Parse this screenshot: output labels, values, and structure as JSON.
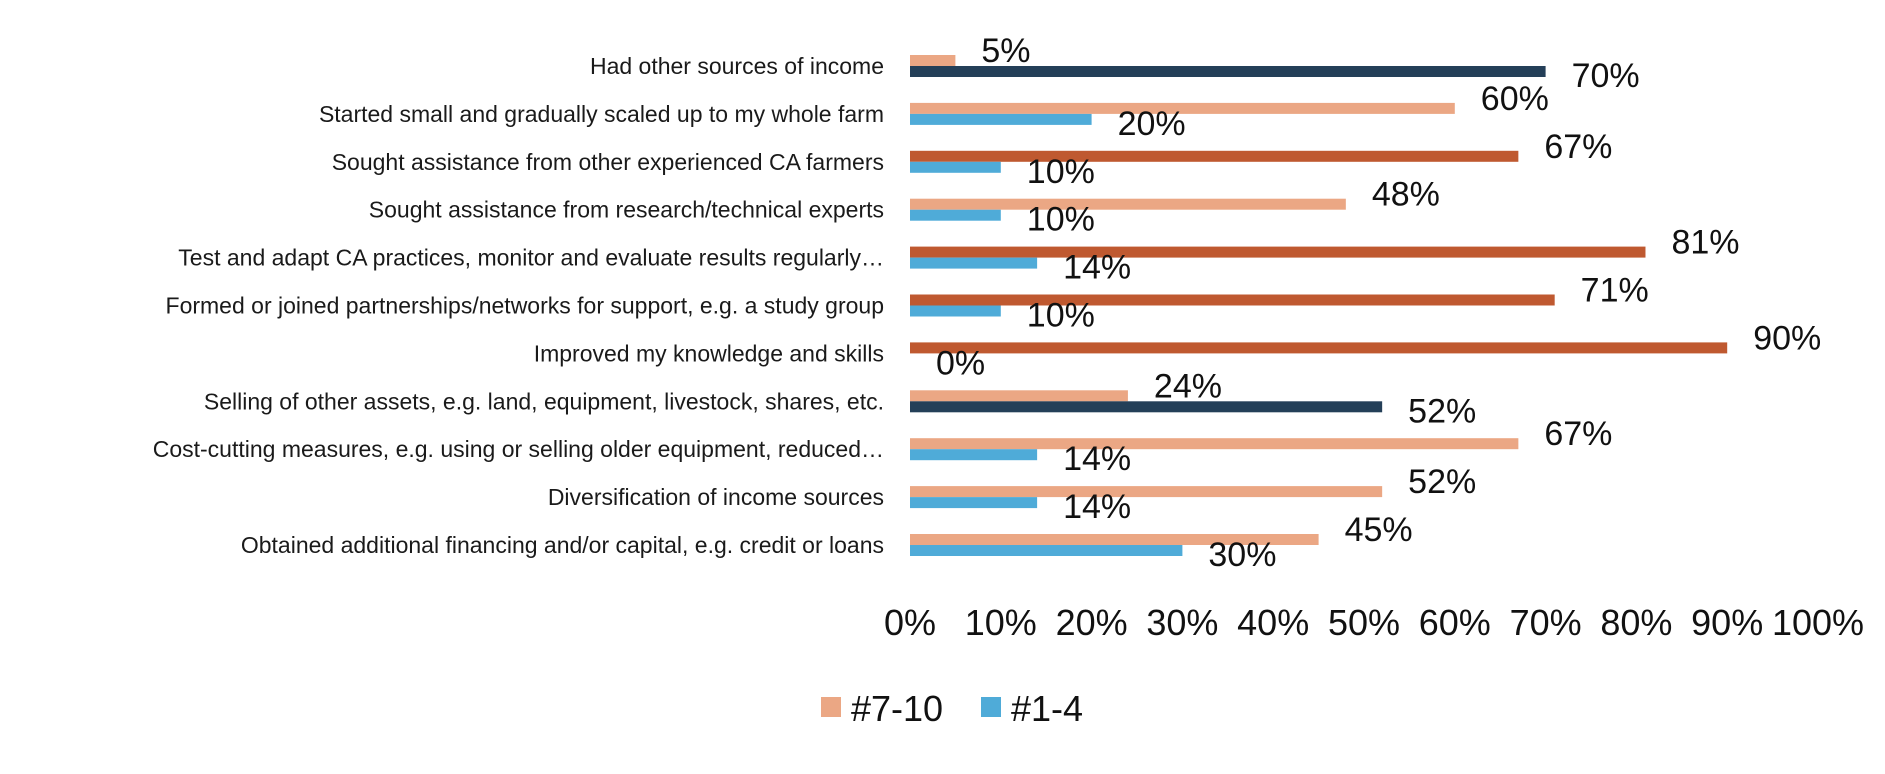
{
  "chart_data": {
    "type": "bar",
    "orientation": "horizontal",
    "categories": [
      "Had other sources of income",
      "Started small and gradually scaled up to my whole farm",
      "Sought assistance from other experienced CA farmers",
      "Sought assistance from research/technical experts",
      "Test and adapt CA practices, monitor and evaluate results regularly…",
      "Formed or joined partnerships/networks for support, e.g. a study group",
      "Improved my knowledge and skills",
      "Selling of other assets, e.g. land, equipment, livestock, shares, etc.",
      "Cost-cutting measures, e.g. using or selling older equipment, reduced…",
      "Diversification of income sources",
      "Obtained additional financing and/or capital, e.g. credit or loans"
    ],
    "series": [
      {
        "name": "#7-10",
        "color": "#eba784",
        "values": [
          5,
          60,
          67,
          48,
          81,
          71,
          90,
          24,
          67,
          52,
          45
        ],
        "bar_colors": [
          "#eba784",
          "#eba784",
          "#bf5930",
          "#eba784",
          "#bf5930",
          "#bf5930",
          "#bf5930",
          "#eba784",
          "#eba784",
          "#eba784",
          "#eba784"
        ],
        "labels": [
          "5%",
          "60%",
          "67%",
          "48%",
          "81%",
          "71%",
          "90%",
          "24%",
          "67%",
          "52%",
          "45%"
        ]
      },
      {
        "name": "#1-4",
        "color": "#4fabd8",
        "values": [
          70,
          20,
          10,
          10,
          14,
          10,
          0,
          52,
          14,
          14,
          30
        ],
        "bar_colors": [
          "#243f58",
          "#4fabd8",
          "#4fabd8",
          "#4fabd8",
          "#4fabd8",
          "#4fabd8",
          "#4fabd8",
          "#243f58",
          "#4fabd8",
          "#4fabd8",
          "#4fabd8"
        ],
        "labels": [
          "70%",
          "20%",
          "10%",
          "10%",
          "14%",
          "10%",
          "0%",
          "52%",
          "14%",
          "14%",
          "30%"
        ]
      }
    ],
    "xlim": [
      0,
      100
    ],
    "x_ticks": [
      "0%",
      "10%",
      "20%",
      "30%",
      "40%",
      "50%",
      "60%",
      "70%",
      "80%",
      "90%",
      "100%"
    ],
    "grid": false,
    "legend": {
      "position": "bottom",
      "entries": [
        {
          "label": "#7-10",
          "color": "#eba784"
        },
        {
          "label": "#1-4",
          "color": "#4fabd8"
        }
      ]
    }
  }
}
